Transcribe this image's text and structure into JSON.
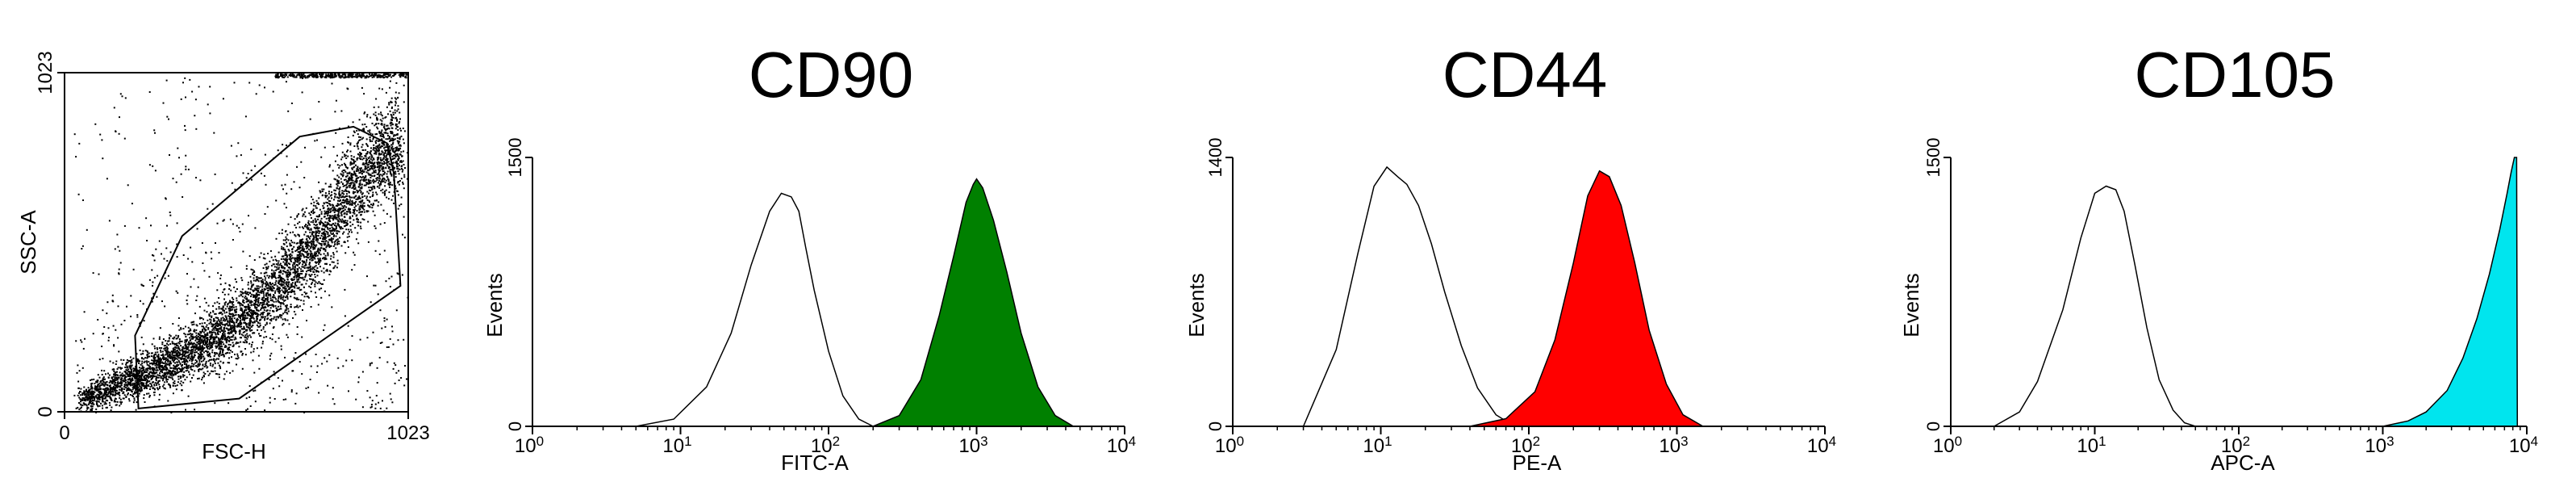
{
  "colors": {
    "axis": "#000000",
    "isotype_line": "#000000",
    "scatter_dot": "#000000",
    "cd90_fill": "#008000",
    "cd44_fill": "#ff0000",
    "cd105_fill": "#00e5ee"
  },
  "chart_data": [
    {
      "type": "scatter",
      "title": "",
      "xlabel": "FSC-H",
      "ylabel": "SSC-A",
      "xlim": [
        0,
        1023
      ],
      "ylim": [
        0,
        1023
      ],
      "x_ticks": [
        {
          "value": 0,
          "label": "0"
        },
        {
          "value": 1023,
          "label": "1023"
        }
      ],
      "y_ticks": [
        {
          "value": 0,
          "label": "0"
        },
        {
          "value": 1023,
          "label": "1023"
        }
      ],
      "population": {
        "description_points": "dense cloud rising from low FSC/SSC to upper right",
        "ridge": [
          [
            50,
            35
          ],
          [
            150,
            80
          ],
          [
            250,
            120
          ],
          [
            350,
            170
          ],
          [
            450,
            230
          ],
          [
            550,
            300
          ],
          [
            650,
            400
          ],
          [
            750,
            520
          ],
          [
            850,
            660
          ],
          [
            950,
            800
          ]
        ]
      },
      "gate_polygon": [
        [
          220,
          10
        ],
        [
          520,
          40
        ],
        [
          1000,
          380
        ],
        [
          980,
          720
        ],
        [
          960,
          810
        ],
        [
          860,
          860
        ],
        [
          700,
          830
        ],
        [
          350,
          530
        ],
        [
          210,
          230
        ]
      ]
    },
    {
      "type": "area",
      "title": "CD90",
      "xlabel": "FITC-A",
      "ylabel": "Events",
      "x_scale": "log",
      "xlim": [
        1,
        10000
      ],
      "ylim": [
        0,
        1500
      ],
      "x_ticks": [
        {
          "value": 1,
          "base": "10",
          "exp": "0"
        },
        {
          "value": 10,
          "base": "10",
          "exp": "1"
        },
        {
          "value": 100,
          "base": "10",
          "exp": "2"
        },
        {
          "value": 1000,
          "base": "10",
          "exp": "3"
        },
        {
          "value": 10000,
          "base": "10",
          "exp": "4"
        }
      ],
      "y_ticks": [
        {
          "value": 0,
          "label": "0"
        },
        {
          "value": 1500,
          "label": "1500"
        }
      ],
      "series": [
        {
          "role": "isotype",
          "style": "outline",
          "x": [
            5,
            9,
            15,
            22,
            30,
            40,
            48,
            56,
            63,
            70,
            80,
            100,
            125,
            160,
            200
          ],
          "y": [
            0,
            40,
            220,
            520,
            900,
            1200,
            1300,
            1280,
            1200,
            1000,
            760,
            420,
            170,
            40,
            0
          ]
        },
        {
          "role": "stained",
          "style": "filled",
          "color": "#008000",
          "x": [
            200,
            300,
            420,
            560,
            700,
            850,
            950,
            1000,
            1100,
            1300,
            1600,
            2000,
            2600,
            3400,
            4500
          ],
          "y": [
            0,
            60,
            260,
            620,
            950,
            1250,
            1350,
            1380,
            1330,
            1150,
            860,
            520,
            220,
            60,
            0
          ]
        }
      ]
    },
    {
      "type": "area",
      "title": "CD44",
      "xlabel": "PE-A",
      "ylabel": "Events",
      "x_scale": "log",
      "xlim": [
        1,
        10000
      ],
      "ylim": [
        0,
        1400
      ],
      "x_ticks": [
        {
          "value": 1,
          "base": "10",
          "exp": "0"
        },
        {
          "value": 10,
          "base": "10",
          "exp": "1"
        },
        {
          "value": 100,
          "base": "10",
          "exp": "2"
        },
        {
          "value": 1000,
          "base": "10",
          "exp": "3"
        },
        {
          "value": 10000,
          "base": "10",
          "exp": "4"
        }
      ],
      "y_ticks": [
        {
          "value": 0,
          "label": "0"
        },
        {
          "value": 1400,
          "label": "1400"
        }
      ],
      "series": [
        {
          "role": "isotype",
          "style": "outline",
          "x": [
            3,
            5,
            7,
            9,
            11,
            13,
            15,
            18,
            22,
            27,
            35,
            45,
            60,
            80
          ],
          "y": [
            0,
            400,
            900,
            1250,
            1350,
            1300,
            1260,
            1150,
            950,
            700,
            420,
            200,
            60,
            0
          ]
        },
        {
          "role": "stained",
          "style": "filled",
          "color": "#ff0000",
          "x": [
            40,
            70,
            110,
            150,
            200,
            250,
            300,
            350,
            420,
            520,
            650,
            850,
            1100,
            1500
          ],
          "y": [
            0,
            40,
            180,
            450,
            850,
            1200,
            1330,
            1300,
            1150,
            850,
            500,
            220,
            60,
            0
          ]
        }
      ]
    },
    {
      "type": "area",
      "title": "CD105",
      "xlabel": "APC-A",
      "ylabel": "Events",
      "x_scale": "log",
      "xlim": [
        1,
        10000
      ],
      "ylim": [
        0,
        1500
      ],
      "x_ticks": [
        {
          "value": 1,
          "base": "10",
          "exp": "0"
        },
        {
          "value": 10,
          "base": "10",
          "exp": "1"
        },
        {
          "value": 100,
          "base": "10",
          "exp": "2"
        },
        {
          "value": 1000,
          "base": "10",
          "exp": "3"
        },
        {
          "value": 10000,
          "base": "10",
          "exp": "4"
        }
      ],
      "y_ticks": [
        {
          "value": 0,
          "label": "0"
        },
        {
          "value": 1500,
          "label": "1500"
        }
      ],
      "series": [
        {
          "role": "isotype",
          "style": "outline",
          "x": [
            2,
            3,
            4,
            6,
            8,
            10,
            12,
            14,
            16,
            19,
            23,
            28,
            35,
            42,
            50
          ],
          "y": [
            0,
            80,
            250,
            650,
            1050,
            1300,
            1340,
            1320,
            1200,
            900,
            550,
            260,
            90,
            20,
            0
          ]
        },
        {
          "role": "stained",
          "style": "filled",
          "color": "#00e5ee",
          "x": [
            1000,
            1500,
            2000,
            2800,
            3600,
            4500,
            5500,
            6500,
            7300,
            7800,
            8200,
            8500,
            8600
          ],
          "y": [
            0,
            30,
            80,
            200,
            380,
            600,
            850,
            1100,
            1300,
            1420,
            1500,
            1500,
            0
          ]
        }
      ]
    }
  ]
}
